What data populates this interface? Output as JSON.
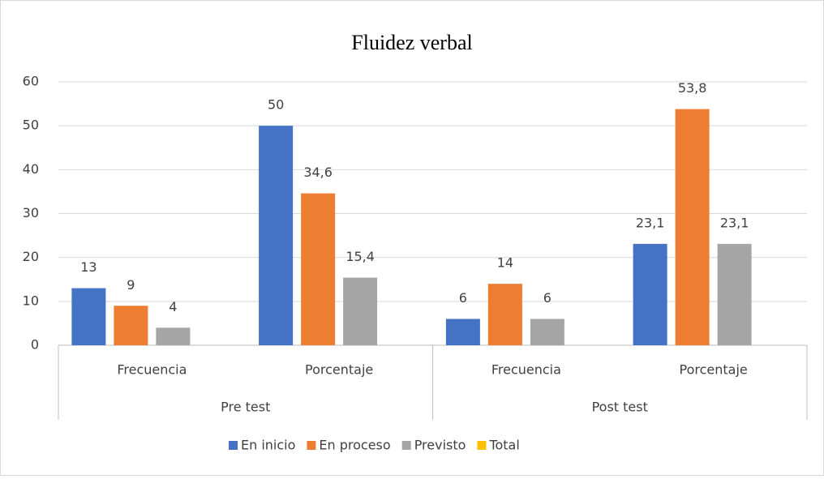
{
  "chart_data": {
    "type": "bar",
    "title": "Fluidez verbal",
    "categories": [
      "Frecuencia",
      "Porcentaje",
      "Frecuencia",
      "Porcentaje"
    ],
    "groups": [
      "Pre test",
      "Post test"
    ],
    "series": [
      {
        "name": "En inicio",
        "color": "#4472c4",
        "values": [
          13,
          50,
          6,
          23.1
        ],
        "value_labels": [
          "13",
          "50",
          "6",
          "23,1"
        ]
      },
      {
        "name": "En proceso",
        "color": "#ed7d31",
        "values": [
          9,
          34.6,
          14,
          53.8
        ],
        "value_labels": [
          "9",
          "34,6",
          "14",
          "53,8"
        ]
      },
      {
        "name": "Previsto",
        "color": "#a5a5a5",
        "values": [
          4,
          15.4,
          6,
          23.1
        ],
        "value_labels": [
          "4",
          "15,4",
          "6",
          "23,1"
        ]
      },
      {
        "name": "Total",
        "color": "#ffc000",
        "values": [
          null,
          null,
          null,
          null
        ]
      }
    ],
    "ylim": [
      0,
      60
    ],
    "yticks": [
      0,
      10,
      20,
      30,
      40,
      50,
      60
    ],
    "grid": true
  }
}
